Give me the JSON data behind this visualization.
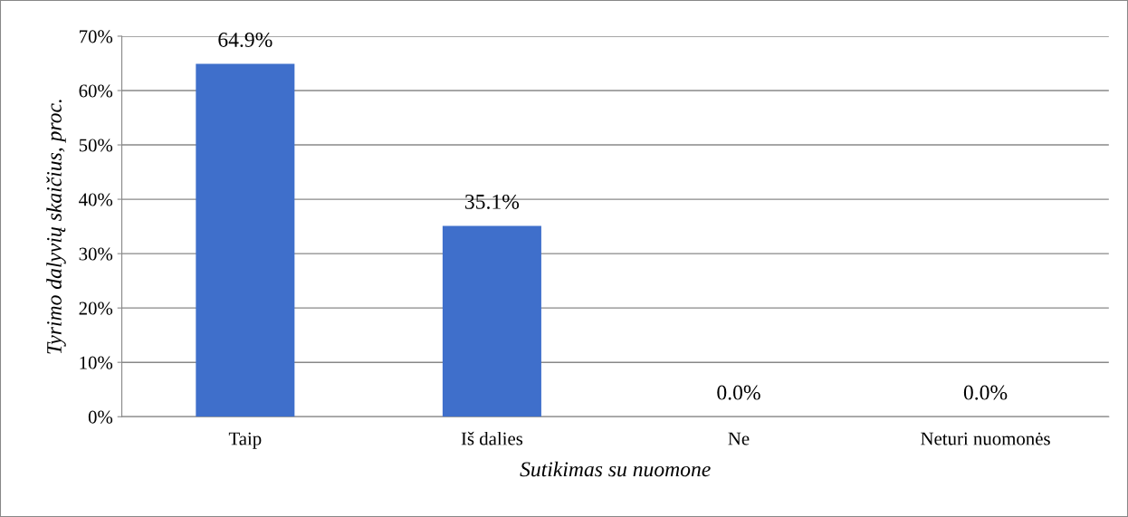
{
  "chart_data": {
    "type": "bar",
    "xlabel": "Sutikimas su nuomone",
    "ylabel": "Tyrimo dalyvių skaičius, proc.",
    "categories": [
      "Taip",
      "Iš dalies",
      "Ne",
      "Neturi nuomonės"
    ],
    "values": [
      64.9,
      35.1,
      0.0,
      0.0
    ],
    "color": "#3f6fcb",
    "value_labels": [
      "64.9%",
      "35.1%",
      "0.0%",
      "0.0%"
    ],
    "ylim": [
      0,
      70
    ],
    "yticks": [
      {
        "value": 0,
        "label": "0%"
      },
      {
        "value": 10,
        "label": "10%"
      },
      {
        "value": 20,
        "label": "20%"
      },
      {
        "value": 30,
        "label": "30%"
      },
      {
        "value": 40,
        "label": "40%"
      },
      {
        "value": 50,
        "label": "50%"
      },
      {
        "value": 60,
        "label": "60%"
      },
      {
        "value": 70,
        "label": "70%"
      }
    ],
    "grid": "y",
    "legend": false
  }
}
